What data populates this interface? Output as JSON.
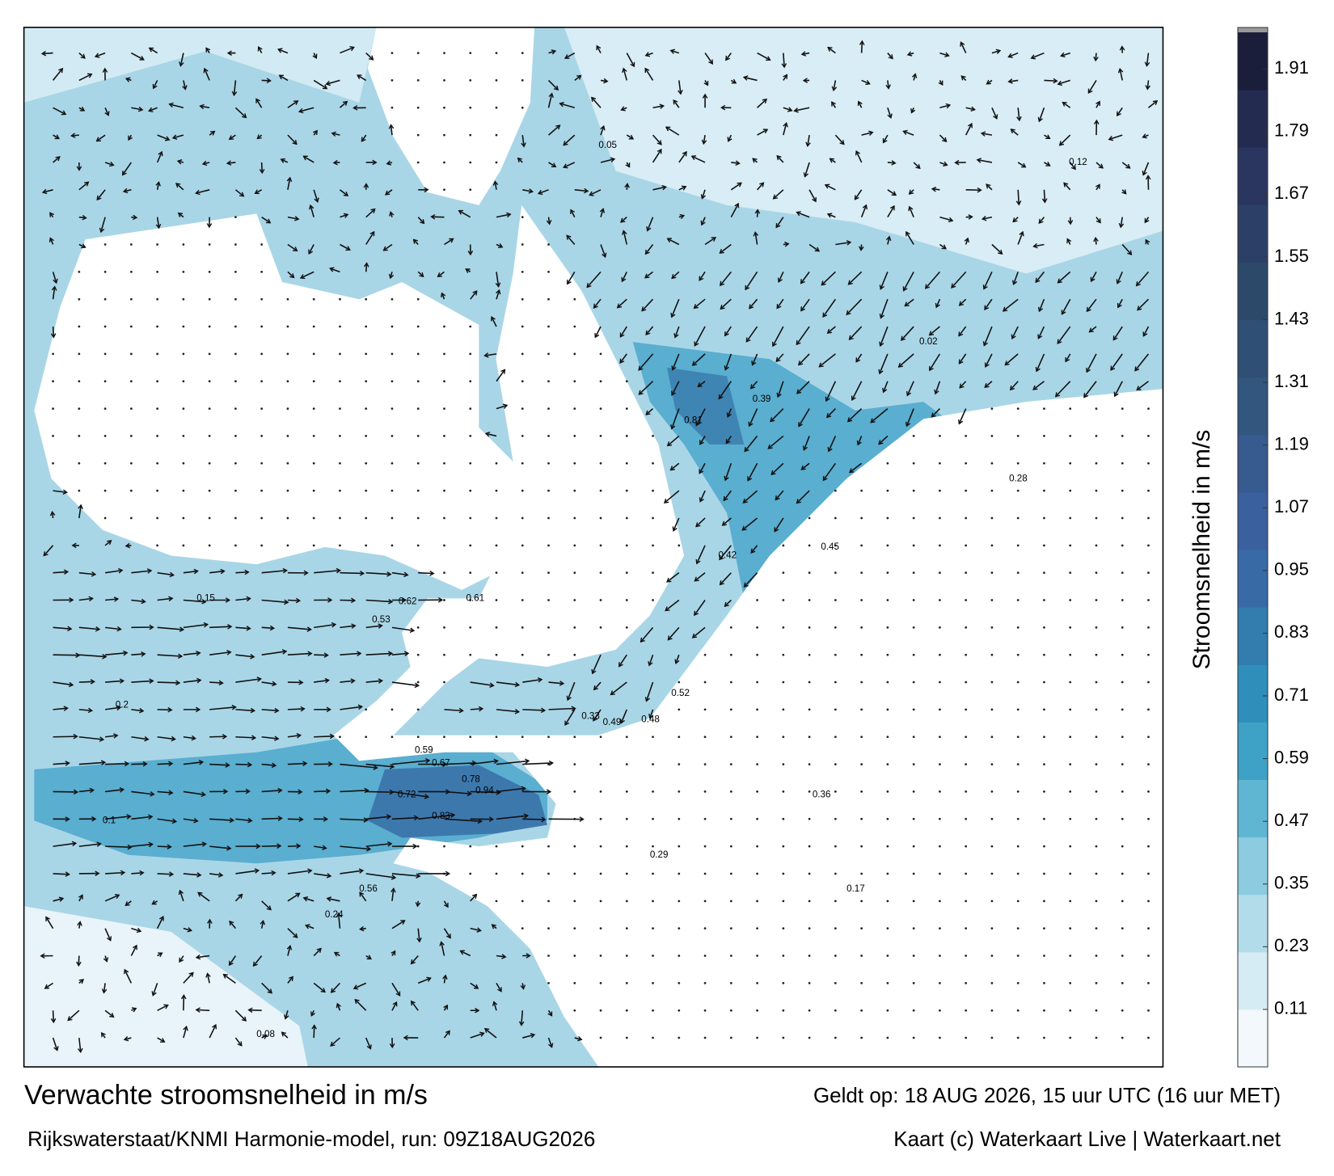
{
  "map": {
    "title": "Verwachte stroomsnelheid in m/s",
    "source": "Rijkswaterstaat/KNMI Harmonie-model, run: 09Z18AUG2026",
    "valid": "Geldt op: 18 AUG 2026, 15 uur UTC (16 uur MET)",
    "credit": "Kaart (c) Waterkaart Live | Waterkaart.net",
    "colorbar": {
      "label": "Stroomsnelheid in m/s",
      "lim": [
        0,
        1.98
      ],
      "ticks": [
        0.11,
        0.23,
        0.35,
        0.47,
        0.59,
        0.71,
        0.83,
        0.95,
        1.07,
        1.19,
        1.31,
        1.43,
        1.55,
        1.67,
        1.79,
        1.91
      ],
      "colors": [
        "#f2f8fb",
        "#d6ecf4",
        "#b3dcea",
        "#8ccbe0",
        "#5fb6d3",
        "#3ea2c6",
        "#2f8fba",
        "#327cae",
        "#386aa6",
        "#3a609d",
        "#375a8f",
        "#33567f",
        "#2f4f74",
        "#2c4969",
        "#2c4067",
        "#2a3660",
        "#232b51",
        "#1b1e3b"
      ]
    },
    "labels": [
      "0.62",
      "0.94",
      "0.83",
      "0.81",
      "0.72",
      "0.78",
      "0.67",
      "0.53",
      "0.59",
      "0.52",
      "0.49",
      "0.48",
      "0.42",
      "0.39",
      "0.33",
      "0.29",
      "0.24",
      "0.2",
      "0.15",
      "0.1",
      "0.08",
      "0.05",
      "0.02",
      "0.61",
      "0.56",
      "0.45",
      "0.36",
      "0.28",
      "0.17",
      "0.12"
    ]
  }
}
